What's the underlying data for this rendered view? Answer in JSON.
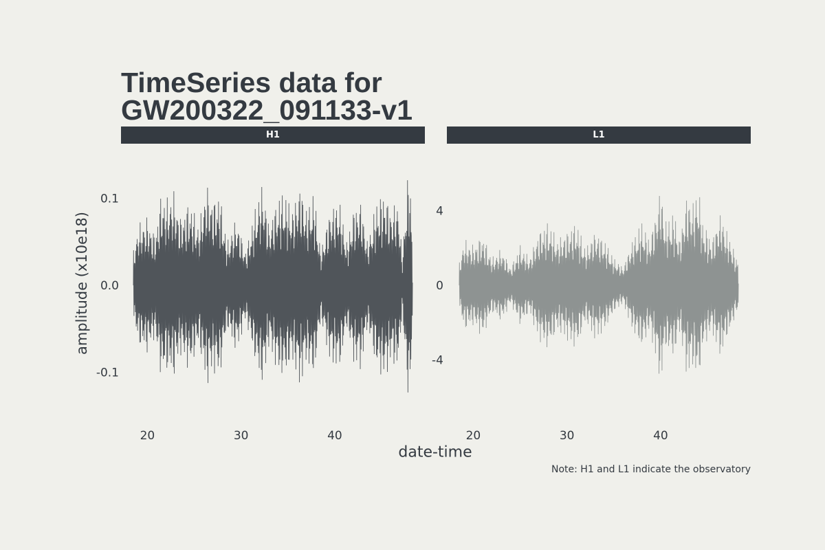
{
  "title_line1": "TimeSeries data for",
  "title_line2": "GW200322_091133-v1",
  "xlabel": "date-time",
  "ylabel": "amplitude (x10e18)",
  "caption": "Note: H1 and L1 indicate the observatory",
  "colors": {
    "background": "#f0f0eb",
    "strip": "#343a41",
    "text": "#343a41",
    "h1_line": "#343a41",
    "l1_line": "#6e7474"
  },
  "chart_data": [
    {
      "type": "line",
      "panel": "H1",
      "xlabel": "date-time",
      "ylabel": "amplitude (x10e18)",
      "xlim": [
        18.5,
        48.3
      ],
      "ylim": [
        -0.15,
        0.15
      ],
      "xticks": [
        20,
        30,
        40
      ],
      "xtick_labels": [
        "20",
        "30",
        "40"
      ],
      "yticks": [
        -0.1,
        0.0,
        0.1
      ],
      "ytick_labels": [
        "-0.1",
        "0.0",
        "0.1"
      ],
      "grid": false,
      "envelope": {
        "t": [
          18.5,
          19.0,
          20.0,
          20.8,
          21.5,
          22.0,
          22.8,
          23.5,
          24.5,
          25.5,
          26.3,
          27.0,
          27.7,
          28.5,
          29.5,
          30.5,
          31.5,
          32.3,
          33.0,
          33.8,
          34.5,
          35.5,
          36.3,
          37.0,
          37.8,
          38.5,
          39.5,
          40.5,
          41.3,
          42.0,
          42.8,
          43.5,
          44.5,
          45.3,
          46.0,
          46.8,
          47.2,
          47.7,
          48.0,
          48.3
        ],
        "amp": [
          0.04,
          0.07,
          0.08,
          0.06,
          0.11,
          0.1,
          0.11,
          0.08,
          0.1,
          0.07,
          0.12,
          0.1,
          0.11,
          0.05,
          0.08,
          0.04,
          0.09,
          0.12,
          0.07,
          0.1,
          0.11,
          0.09,
          0.12,
          0.09,
          0.11,
          0.04,
          0.09,
          0.1,
          0.05,
          0.09,
          0.1,
          0.05,
          0.1,
          0.11,
          0.09,
          0.1,
          0.03,
          0.12,
          0.14,
          0.05
        ]
      }
    },
    {
      "type": "line",
      "panel": "L1",
      "xlabel": "date-time",
      "ylabel": "",
      "xlim": [
        18.5,
        48.3
      ],
      "ylim": [
        -7,
        7
      ],
      "xticks": [
        20,
        30,
        40
      ],
      "xtick_labels": [
        "20",
        "30",
        "40"
      ],
      "yticks": [
        -4,
        0,
        4
      ],
      "ytick_labels": [
        "-4",
        "0",
        "4"
      ],
      "grid": false,
      "envelope": {
        "t": [
          18.5,
          19.0,
          20.0,
          21.0,
          22.0,
          23.0,
          24.0,
          25.0,
          26.0,
          27.0,
          28.0,
          29.0,
          30.0,
          31.0,
          32.0,
          33.0,
          34.0,
          35.0,
          36.0,
          37.0,
          38.0,
          38.8,
          39.5,
          40.0,
          40.5,
          41.5,
          42.0,
          42.8,
          43.5,
          44.0,
          44.5,
          45.5,
          46.0,
          46.5,
          47.0,
          47.5,
          48.0,
          48.3
        ],
        "amp": [
          1.2,
          2.5,
          2.2,
          2.8,
          1.5,
          2.0,
          1.0,
          2.2,
          1.5,
          3.0,
          3.5,
          2.5,
          3.0,
          3.5,
          2.0,
          3.0,
          2.5,
          1.5,
          1.0,
          2.5,
          3.5,
          2.5,
          4.0,
          5.5,
          3.5,
          4.0,
          2.5,
          5.0,
          4.5,
          5.5,
          3.5,
          2.5,
          3.5,
          4.0,
          3.0,
          2.5,
          1.6,
          1.5
        ]
      }
    }
  ]
}
